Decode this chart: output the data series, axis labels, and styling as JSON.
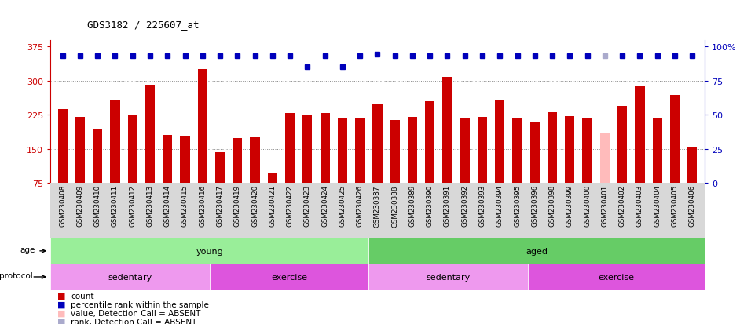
{
  "title": "GDS3182 / 225607_at",
  "samples": [
    "GSM230408",
    "GSM230409",
    "GSM230410",
    "GSM230411",
    "GSM230412",
    "GSM230413",
    "GSM230414",
    "GSM230415",
    "GSM230416",
    "GSM230417",
    "GSM230419",
    "GSM230420",
    "GSM230421",
    "GSM230422",
    "GSM230423",
    "GSM230424",
    "GSM230425",
    "GSM230426",
    "GSM230387",
    "GSM230388",
    "GSM230389",
    "GSM230390",
    "GSM230391",
    "GSM230392",
    "GSM230393",
    "GSM230394",
    "GSM230395",
    "GSM230396",
    "GSM230398",
    "GSM230399",
    "GSM230400",
    "GSM230401",
    "GSM230402",
    "GSM230403",
    "GSM230404",
    "GSM230405",
    "GSM230406"
  ],
  "bar_values": [
    237,
    220,
    195,
    258,
    225,
    291,
    180,
    178,
    326,
    142,
    173,
    175,
    97,
    228,
    224,
    228,
    218,
    218,
    247,
    213,
    220,
    255,
    308,
    218,
    220,
    258,
    218,
    208,
    230,
    222,
    218,
    183,
    245,
    290,
    218,
    268,
    152
  ],
  "bar_colors": [
    "#cc0000",
    "#cc0000",
    "#cc0000",
    "#cc0000",
    "#cc0000",
    "#cc0000",
    "#cc0000",
    "#cc0000",
    "#cc0000",
    "#cc0000",
    "#cc0000",
    "#cc0000",
    "#cc0000",
    "#cc0000",
    "#cc0000",
    "#cc0000",
    "#cc0000",
    "#cc0000",
    "#cc0000",
    "#cc0000",
    "#cc0000",
    "#cc0000",
    "#cc0000",
    "#cc0000",
    "#cc0000",
    "#cc0000",
    "#cc0000",
    "#cc0000",
    "#cc0000",
    "#cc0000",
    "#cc0000",
    "#ffbbbb",
    "#cc0000",
    "#cc0000",
    "#cc0000",
    "#cc0000",
    "#cc0000"
  ],
  "rank_y_left": [
    355,
    355,
    355,
    355,
    355,
    355,
    355,
    355,
    355,
    355,
    355,
    355,
    355,
    355,
    330,
    355,
    330,
    355,
    358,
    355,
    355,
    355,
    355,
    355,
    355,
    355,
    355,
    355,
    355,
    355,
    355,
    355,
    355,
    355,
    355,
    355,
    355
  ],
  "rank_colors": [
    "#0000bb",
    "#0000bb",
    "#0000bb",
    "#0000bb",
    "#0000bb",
    "#0000bb",
    "#0000bb",
    "#0000bb",
    "#0000bb",
    "#0000bb",
    "#0000bb",
    "#0000bb",
    "#0000bb",
    "#0000bb",
    "#0000bb",
    "#0000bb",
    "#0000bb",
    "#0000bb",
    "#0000bb",
    "#0000bb",
    "#0000bb",
    "#0000bb",
    "#0000bb",
    "#0000bb",
    "#0000bb",
    "#0000bb",
    "#0000bb",
    "#0000bb",
    "#0000bb",
    "#0000bb",
    "#0000bb",
    "#aaaacc",
    "#0000bb",
    "#0000bb",
    "#0000bb",
    "#0000bb",
    "#0000bb"
  ],
  "left_yticks": [
    75,
    150,
    225,
    300,
    375
  ],
  "right_yticks": [
    0,
    25,
    50,
    75,
    100
  ],
  "left_ylim": [
    75,
    390
  ],
  "age_groups": [
    {
      "label": "young",
      "start": 0,
      "end": 18,
      "color": "#99ee99"
    },
    {
      "label": "aged",
      "start": 18,
      "end": 37,
      "color": "#66cc66"
    }
  ],
  "protocol_groups": [
    {
      "label": "sedentary",
      "start": 0,
      "end": 9,
      "color": "#ee99ee"
    },
    {
      "label": "exercise",
      "start": 9,
      "end": 18,
      "color": "#dd55dd"
    },
    {
      "label": "sedentary",
      "start": 18,
      "end": 27,
      "color": "#ee99ee"
    },
    {
      "label": "exercise",
      "start": 27,
      "end": 37,
      "color": "#dd55dd"
    }
  ],
  "legend_items": [
    {
      "label": "count",
      "color": "#cc0000"
    },
    {
      "label": "percentile rank within the sample",
      "color": "#0000bb"
    },
    {
      "label": "value, Detection Call = ABSENT",
      "color": "#ffbbbb"
    },
    {
      "label": "rank, Detection Call = ABSENT",
      "color": "#aaaacc"
    }
  ],
  "bg_color": "#ffffff",
  "grid_color": "#888888",
  "bar_width": 0.55
}
